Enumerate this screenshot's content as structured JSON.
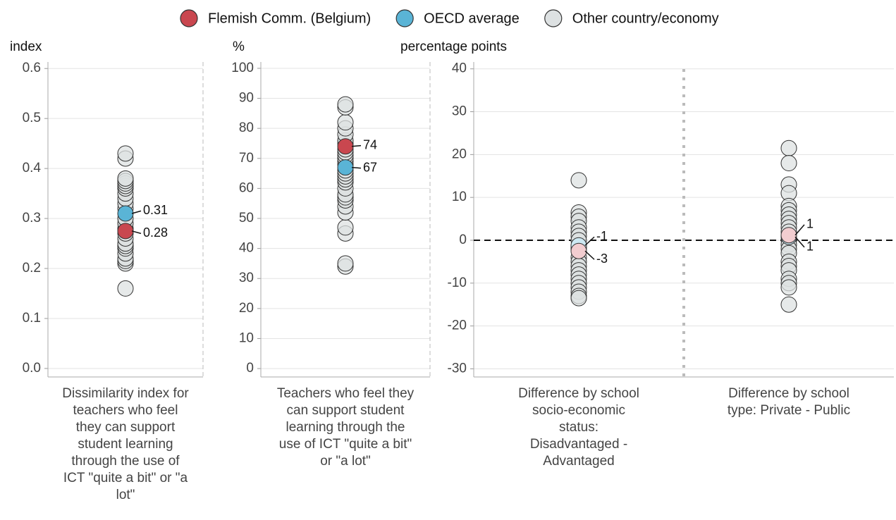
{
  "chart_data": [
    {
      "type": "strip",
      "y_label": "index",
      "ylim": [
        -0.017,
        0.613
      ],
      "yticks": [
        {
          "value": 0,
          "label": "0.0"
        },
        0.1,
        0.2,
        0.3,
        0.4,
        0.5,
        0.6
      ],
      "grid": true,
      "categories": [
        "Dissimilarity index for teachers who feel they can support student learning through the use of ICT \"quite a bit\" or \"a lot\""
      ],
      "series": [
        {
          "name": "Other country/economy",
          "color": "#dde1e2",
          "values": [
            [
              0.16,
              0.21,
              0.215,
              0.22,
              0.23,
              0.24,
              0.245,
              0.25,
              0.26,
              0.27,
              0.28,
              0.29,
              0.3,
              0.32,
              0.33,
              0.34,
              0.35,
              0.36,
              0.365,
              0.37,
              0.375,
              0.38,
              0.42,
              0.43
            ]
          ]
        },
        {
          "name": "OECD average",
          "color": "#5ab4d6",
          "values": [
            0.31
          ]
        },
        {
          "name": "Flemish Comm. (Belgium)",
          "color": "#c9474f",
          "values": [
            0.275
          ],
          "value_labels": [
            "0.28"
          ]
        }
      ]
    },
    {
      "type": "strip",
      "y_label": "%",
      "ylim": [
        -2.8,
        102.1
      ],
      "yticks": [
        0,
        10,
        20,
        30,
        40,
        50,
        60,
        70,
        80,
        90,
        100
      ],
      "grid": true,
      "categories": [
        "Teachers who feel they can support student learning through the use of ICT \"quite a bit\" or \"a lot\""
      ],
      "series": [
        {
          "name": "Other country/economy",
          "color": "#dde1e2",
          "values": [
            [
              34,
              35,
              45,
              47,
              52,
              54,
              56,
              57,
              58,
              60,
              62,
              63,
              64,
              65,
              66,
              68,
              69,
              70,
              71,
              72,
              73,
              75,
              76,
              78,
              80,
              82,
              87,
              88
            ]
          ]
        },
        {
          "name": "OECD average",
          "color": "#5ab4d6",
          "values": [
            67
          ]
        },
        {
          "name": "Flemish Comm. (Belgium)",
          "color": "#c9474f",
          "values": [
            74
          ]
        }
      ]
    },
    {
      "type": "strip",
      "y_label": "percentage points",
      "ylim": [
        -31.9,
        41.6
      ],
      "yticks": [
        -30,
        -20,
        -10,
        0,
        10,
        20,
        30,
        40
      ],
      "grid": true,
      "reference_line": 0,
      "categories": [
        "Difference by school socio-economic status: Disadvantaged - Advantaged",
        "Difference by school type: Private - Public"
      ],
      "series": [
        {
          "name": "Other country/economy",
          "color": "#dde1e2",
          "values": [
            [
              14,
              6.5,
              5.5,
              4.5,
              3,
              2,
              1,
              0,
              -1.5,
              -2,
              -4,
              -5,
              -6,
              -7,
              -8,
              -9,
              -10,
              -11,
              -12,
              -13,
              -13.5
            ],
            [
              21.5,
              18,
              13,
              11,
              8,
              7,
              6,
              5,
              4,
              3,
              2,
              0,
              -1,
              -2,
              -3,
              -5,
              -6,
              -7,
              -9,
              -10,
              -11,
              -15
            ]
          ]
        },
        {
          "name": "OECD average",
          "color": "#cde8f2",
          "values": [
            -1.2,
            0.8
          ],
          "value_labels": [
            "-1",
            "1"
          ]
        },
        {
          "name": "Flemish Comm. (Belgium)",
          "color": "#f2cdd0",
          "values": [
            -2.5,
            1.2
          ],
          "value_labels": [
            "-3",
            "1"
          ]
        }
      ]
    }
  ]
}
